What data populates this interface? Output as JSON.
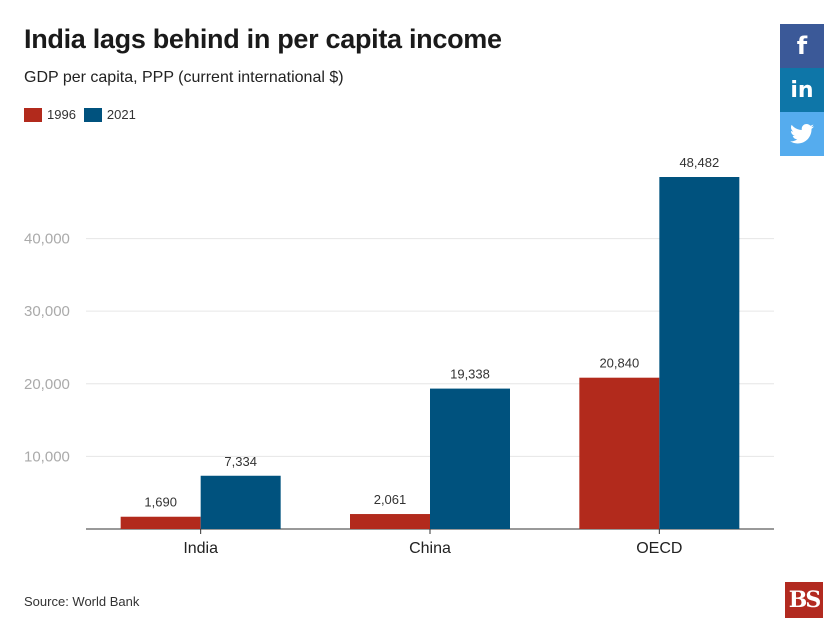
{
  "share": {
    "facebook_label": "f",
    "linkedin_label": "in",
    "facebook_icon": "facebook-icon",
    "linkedin_icon": "linkedin-icon",
    "twitter_icon": "twitter-icon"
  },
  "footer": {
    "source": "Source: World Bank",
    "logo_text": "BS"
  },
  "chart_data": {
    "type": "bar",
    "title": "India lags behind in per capita income",
    "subtitle": "GDP per capita, PPP (current international $)",
    "xlabel": "",
    "ylabel": "",
    "categories": [
      "India",
      "China",
      "OECD"
    ],
    "series": [
      {
        "name": "1996",
        "color": "#b22a1c",
        "values": [
          1690,
          2061,
          20840
        ],
        "labels": [
          "1,690",
          "2,061",
          "20,840"
        ]
      },
      {
        "name": "2021",
        "color": "#00527e",
        "values": [
          7334,
          19338,
          48482
        ],
        "labels": [
          "7,334",
          "19,338",
          "48,482"
        ]
      }
    ],
    "yticks": [
      10000,
      20000,
      30000,
      40000
    ],
    "ytick_labels": [
      "10,000",
      "20,000",
      "30,000",
      "40,000"
    ],
    "ylim": [
      0,
      48482
    ],
    "grid": true,
    "legend_position": "top-left"
  }
}
